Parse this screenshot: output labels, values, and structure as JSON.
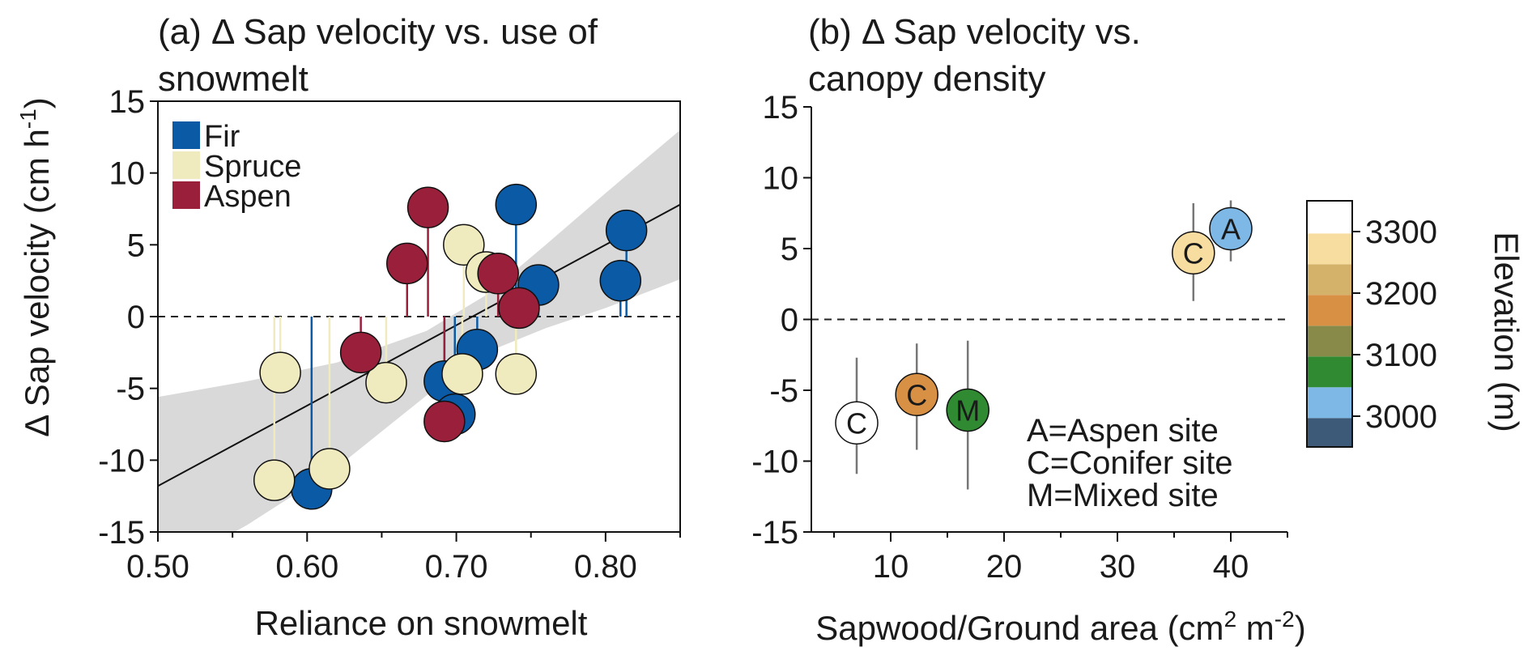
{
  "chart_data": [
    {
      "panel": "a",
      "type": "scatter",
      "title_line1": "(a) Δ Sap velocity vs. use of",
      "title_line2": "snowmelt",
      "xlabel": "Reliance on snowmelt",
      "ylabel_line1": "Δ  Sap velocity (cm h",
      "ylabel_sup": "-1",
      "ylabel_close": ")",
      "xlim": [
        0.5,
        0.85
      ],
      "ylim": [
        -15,
        15
      ],
      "xticks": [
        0.5,
        0.6,
        0.7,
        0.8
      ],
      "xtick_labels": [
        "0.50",
        "0.60",
        "0.70",
        "0.80"
      ],
      "yticks": [
        -15,
        -10,
        -5,
        0,
        5,
        10,
        15
      ],
      "ytick_labels": [
        "-15",
        "-10",
        "-5",
        "0",
        "5",
        "10",
        "15"
      ],
      "legend": [
        {
          "name": "Fir",
          "color": "#0a5aa6"
        },
        {
          "name": "Spruce",
          "color": "#f0ebbe"
        },
        {
          "name": "Aspen",
          "color": "#9a1f3a"
        }
      ],
      "fit_line": {
        "x": [
          0.5,
          0.85
        ],
        "y": [
          -11.8,
          7.8
        ]
      },
      "confidence_band": {
        "x": [
          0.5,
          0.56,
          0.62,
          0.68,
          0.72,
          0.76,
          0.8,
          0.85
        ],
        "lower": [
          -18.0,
          -14.5,
          -10.5,
          -5.5,
          -2.5,
          -0.8,
          0.6,
          2.6
        ],
        "upper": [
          -5.6,
          -4.5,
          -3.2,
          -1.0,
          1.5,
          5.0,
          8.6,
          13.0
        ]
      },
      "series": [
        {
          "name": "Fir",
          "color": "#0a5aa6",
          "points": [
            {
              "x": 0.603,
              "y": -12.0
            },
            {
              "x": 0.692,
              "y": -4.5
            },
            {
              "x": 0.699,
              "y": -6.8
            },
            {
              "x": 0.714,
              "y": -2.3
            },
            {
              "x": 0.74,
              "y": 7.8
            },
            {
              "x": 0.755,
              "y": 2.2
            },
            {
              "x": 0.81,
              "y": 2.5
            },
            {
              "x": 0.814,
              "y": 6.0
            }
          ]
        },
        {
          "name": "Spruce",
          "color": "#f0ebbe",
          "points": [
            {
              "x": 0.578,
              "y": -11.4
            },
            {
              "x": 0.582,
              "y": -3.9
            },
            {
              "x": 0.615,
              "y": -10.6
            },
            {
              "x": 0.653,
              "y": -4.6
            },
            {
              "x": 0.704,
              "y": -4.0
            },
            {
              "x": 0.705,
              "y": 5.0
            },
            {
              "x": 0.72,
              "y": 3.1
            },
            {
              "x": 0.74,
              "y": -4.0
            }
          ]
        },
        {
          "name": "Aspen",
          "color": "#9a1f3a",
          "points": [
            {
              "x": 0.636,
              "y": -2.5
            },
            {
              "x": 0.667,
              "y": 3.7
            },
            {
              "x": 0.681,
              "y": 7.6
            },
            {
              "x": 0.692,
              "y": -7.3
            },
            {
              "x": 0.728,
              "y": 3.0
            },
            {
              "x": 0.742,
              "y": 0.6
            }
          ]
        }
      ]
    },
    {
      "panel": "b",
      "type": "scatter",
      "title_line1": "(b) Δ Sap velocity vs.",
      "title_line2": "canopy density",
      "xlabel_main": "Sapwood/Ground area (cm",
      "xlabel_sup1": "2",
      "xlabel_mid": " m",
      "xlabel_sup2": "-2",
      "xlabel_close": ")",
      "xlim": [
        3,
        45
      ],
      "ylim": [
        -15,
        15
      ],
      "xticks": [
        10,
        20,
        30,
        40
      ],
      "xtick_labels": [
        "10",
        "20",
        "30",
        "40"
      ],
      "minor_xticks": [
        5,
        15,
        25,
        35,
        45
      ],
      "yticks": [
        -15,
        -10,
        -5,
        0,
        5,
        10,
        15
      ],
      "ytick_labels": [
        "-15",
        "-10",
        "-5",
        "0",
        "5",
        "10",
        "15"
      ],
      "annotation": [
        "A=Aspen site",
        "C=Conifer site",
        "M=Mixed site"
      ],
      "points": [
        {
          "label": "C",
          "x": 7.0,
          "y": -7.3,
          "err_low": -10.9,
          "err_high": -2.7,
          "color": "#ffffff",
          "elevation": 3330
        },
        {
          "label": "C",
          "x": 12.3,
          "y": -5.3,
          "err_low": -9.2,
          "err_high": -1.7,
          "color": "#d89045",
          "elevation": 3180
        },
        {
          "label": "M",
          "x": 16.8,
          "y": -6.4,
          "err_low": -12.0,
          "err_high": -1.5,
          "color": "#2f8a32",
          "elevation": 3070
        },
        {
          "label": "C",
          "x": 36.7,
          "y": 4.7,
          "err_low": 1.3,
          "err_high": 8.2,
          "color": "#f8dda0",
          "elevation": 3290
        },
        {
          "label": "A",
          "x": 40.0,
          "y": 6.4,
          "err_low": 4.1,
          "err_high": 8.4,
          "color": "#7eb8e6",
          "elevation": 3020
        }
      ],
      "colorbar": {
        "label": "Elevation (m)",
        "tick_labels": [
          "3300",
          "3200",
          "3100",
          "3000"
        ],
        "range": [
          2950,
          3350
        ],
        "tick_values": [
          3300,
          3200,
          3100,
          3000
        ],
        "bins": [
          {
            "from": 2950,
            "to": 2997,
            "color": "#3d5a78"
          },
          {
            "from": 2997,
            "to": 3047,
            "color": "#7eb8e6"
          },
          {
            "from": 3047,
            "to": 3097,
            "color": "#2f8a32"
          },
          {
            "from": 3097,
            "to": 3147,
            "color": "#878a48"
          },
          {
            "from": 3147,
            "to": 3197,
            "color": "#d89045"
          },
          {
            "from": 3197,
            "to": 3247,
            "color": "#d4b26a"
          },
          {
            "from": 3247,
            "to": 3297,
            "color": "#f8dda0"
          },
          {
            "from": 3297,
            "to": 3350,
            "color": "#ffffff"
          }
        ]
      }
    }
  ]
}
